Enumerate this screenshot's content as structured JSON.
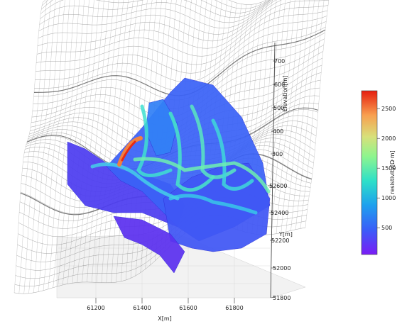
{
  "chart_data": {
    "type": "surface3d",
    "title": "",
    "xlabel": "X[m]",
    "ylabel": "Y[m]",
    "zlabel": "Elevation[m]",
    "x_ticks": [
      "61200",
      "61400",
      "61600",
      "61800"
    ],
    "y_ticks": [
      "52600",
      "52400",
      "52200",
      "52000",
      "51800"
    ],
    "z_ticks": [
      "700",
      "600",
      "500",
      "400",
      "300"
    ],
    "colorbar": {
      "label": "resistivity[Ω·m]",
      "ticks": [
        "2500",
        "2000",
        "1500",
        "1000",
        "500"
      ],
      "range": [
        50,
        2800
      ],
      "colormap": "rainbow"
    },
    "terrain_style": "wireframe",
    "grid": true
  },
  "colors": {
    "wire": "#555555",
    "pane": "#f2f2f2",
    "cmap_low": "#7a1cf5",
    "cmap_high": "#e61e0f"
  }
}
